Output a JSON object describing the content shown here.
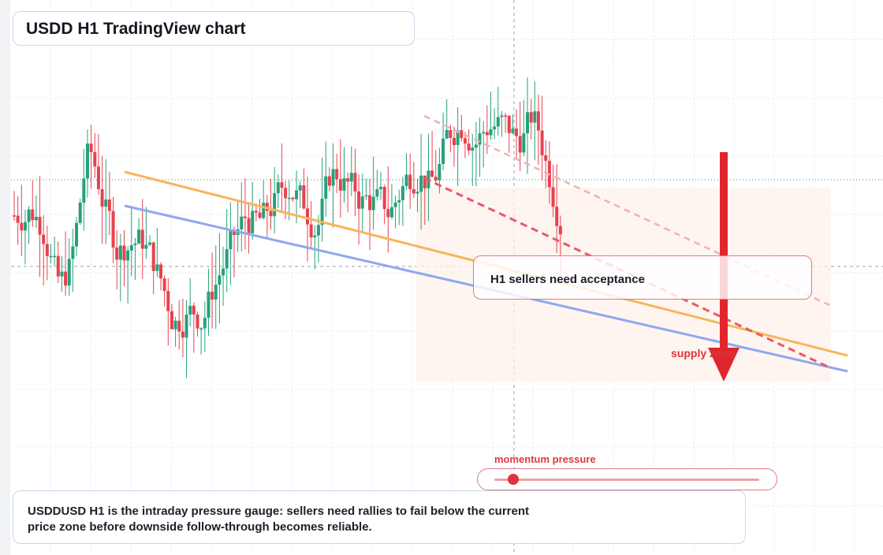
{
  "title": "USDD H1 TradingView chart",
  "callout": "H1 sellers need acceptance",
  "supply_label": "supply zone",
  "gauge": {
    "label": "momentum pressure",
    "value": 0.07
  },
  "note": "USDDUSD H1 is the intraday pressure gauge: sellers need rallies to fail below the current price zone before downside follow-through becomes reliable.",
  "colors": {
    "up": "#26a17a",
    "down": "#e8414e",
    "orange_trend": "#f7b55a",
    "blue_trend": "#8ea8f0",
    "bear_line": "#e85a64",
    "arrow": "#e0262c"
  },
  "chart_data": {
    "type": "candlestick",
    "timeframe": "H1",
    "symbol": "USDDUSD",
    "grid": true,
    "seed": 7,
    "candle_count": 150,
    "start_level": 0.58,
    "current_level": 0.53,
    "series_shape": [
      0.58,
      0.6,
      0.55,
      0.35,
      0.48,
      0.8,
      0.62,
      0.47,
      0.52,
      0.5,
      0.4,
      0.28,
      0.32,
      0.3,
      0.42,
      0.5,
      0.58,
      0.55,
      0.62,
      0.68,
      0.6,
      0.55,
      0.72,
      0.66,
      0.62,
      0.62,
      0.58,
      0.68,
      0.72,
      0.65,
      0.8,
      0.85,
      0.78,
      0.84,
      0.82,
      0.78,
      0.86,
      0.7,
      0.55
    ]
  }
}
